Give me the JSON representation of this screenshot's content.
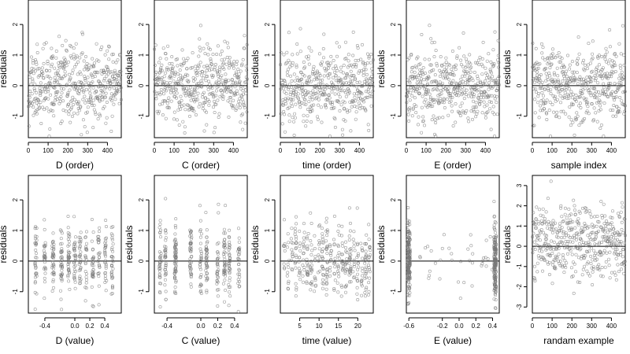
{
  "chart_data": [
    {
      "type": "scatter",
      "xlabel": "D (order)",
      "ylabel": "residuals",
      "xlim": [
        0,
        470
      ],
      "ylim": [
        -1.7,
        2.8
      ],
      "x_ticks": [
        0,
        100,
        200,
        300,
        400
      ],
      "y_ticks": [
        -1,
        0,
        1,
        2
      ],
      "reference_line": 0,
      "pattern": "index",
      "y_center": 0.0,
      "y_spread": 0.6,
      "n": 460,
      "seed": 11
    },
    {
      "type": "scatter",
      "xlabel": "C (order)",
      "ylabel": "residuals",
      "xlim": [
        0,
        470
      ],
      "ylim": [
        -1.7,
        2.8
      ],
      "x_ticks": [
        0,
        100,
        200,
        300,
        400
      ],
      "y_ticks": [
        -1,
        0,
        1,
        2
      ],
      "reference_line": 0,
      "pattern": "index",
      "y_center": 0.0,
      "y_spread": 0.6,
      "n": 460,
      "seed": 23
    },
    {
      "type": "scatter",
      "xlabel": "time (order)",
      "ylabel": "residuals",
      "xlim": [
        0,
        470
      ],
      "ylim": [
        -1.7,
        2.8
      ],
      "x_ticks": [
        0,
        100,
        200,
        300,
        400
      ],
      "y_ticks": [
        -1,
        0,
        1,
        2
      ],
      "reference_line": 0,
      "pattern": "index",
      "y_center": 0.0,
      "y_spread": 0.6,
      "n": 460,
      "seed": 37
    },
    {
      "type": "scatter",
      "xlabel": "E (order)",
      "ylabel": "residuals",
      "xlim": [
        0,
        470
      ],
      "ylim": [
        -1.7,
        2.8
      ],
      "x_ticks": [
        0,
        100,
        200,
        300,
        400
      ],
      "y_ticks": [
        -1,
        0,
        1,
        2
      ],
      "reference_line": 0,
      "pattern": "index",
      "y_center": 0.0,
      "y_spread": 0.6,
      "n": 460,
      "seed": 41
    },
    {
      "type": "scatter",
      "xlabel": "sample index",
      "ylabel": "residuals",
      "xlim": [
        0,
        470
      ],
      "ylim": [
        -1.7,
        2.8
      ],
      "x_ticks": [
        0,
        100,
        200,
        300,
        400
      ],
      "y_ticks": [
        -1,
        0,
        1,
        2
      ],
      "reference_line": 0,
      "pattern": "index",
      "y_center": 0.0,
      "y_spread": 0.6,
      "n": 460,
      "seed": 53
    },
    {
      "type": "scatter",
      "xlabel": "D (value)",
      "ylabel": "residuals",
      "xlim": [
        -0.62,
        0.62
      ],
      "ylim": [
        -1.7,
        2.8
      ],
      "x_ticks": [
        -0.4,
        0.0,
        0.2,
        0.4
      ],
      "x_tick_labels": [
        "-0.4",
        "0.0",
        "0.2",
        "0.4"
      ],
      "y_ticks": [
        -1,
        0,
        1,
        2
      ],
      "reference_line": 0,
      "pattern": "value",
      "x_levels": [
        -0.52,
        -0.4,
        -0.29,
        -0.18,
        -0.08,
        0.0,
        0.07,
        0.15,
        0.24,
        0.32,
        0.41,
        0.5
      ],
      "y_center": 0.0,
      "y_spread": 0.6,
      "n": 380,
      "seed": 61
    },
    {
      "type": "scatter",
      "xlabel": "C (value)",
      "ylabel": "residuals",
      "xlim": [
        -0.55,
        0.55
      ],
      "ylim": [
        -1.7,
        2.8
      ],
      "x_ticks": [
        -0.4,
        0.0,
        0.2,
        0.4
      ],
      "x_tick_labels": [
        "-0.4",
        "0.0",
        "0.2",
        "0.4"
      ],
      "y_ticks": [
        -1,
        0,
        1,
        2
      ],
      "reference_line": 0,
      "pattern": "value",
      "x_levels": [
        -0.48,
        -0.42,
        -0.3,
        -0.12,
        0.0,
        0.07,
        0.2,
        0.28,
        0.34,
        0.45
      ],
      "y_center": 0.0,
      "y_spread": 0.6,
      "n": 380,
      "seed": 71
    },
    {
      "type": "scatter",
      "xlabel": "time (value)",
      "ylabel": "residuals",
      "xlim": [
        0,
        24
      ],
      "ylim": [
        -1.7,
        2.8
      ],
      "x_ticks": [
        5,
        10,
        15,
        20
      ],
      "y_ticks": [
        -1,
        0,
        1,
        2
      ],
      "reference_line": 0,
      "pattern": "value",
      "x_levels": [
        1,
        2,
        3,
        4,
        5,
        6,
        7,
        8,
        9,
        10,
        11,
        12,
        13,
        14,
        15,
        16,
        17,
        18,
        19,
        20,
        21,
        22,
        23
      ],
      "y_center": 0.0,
      "y_spread": 0.6,
      "n": 380,
      "seed": 83
    },
    {
      "type": "scatter",
      "xlabel": "E (value)",
      "ylabel": "residuals",
      "xlim": [
        -0.63,
        0.48
      ],
      "ylim": [
        -1.7,
        2.8
      ],
      "x_ticks": [
        -0.6,
        -0.2,
        0.0,
        0.2,
        0.4
      ],
      "x_tick_labels": [
        "-0.6",
        "-0.2",
        "0.0",
        "0.2",
        "0.4"
      ],
      "y_ticks": [
        -1,
        0,
        1,
        2
      ],
      "reference_line": 0,
      "pattern": "cluster",
      "x_levels": [
        -0.6,
        0.43
      ],
      "y_center": 0.0,
      "y_spread": 0.6,
      "n": 380,
      "seed": 97
    },
    {
      "type": "scatter",
      "xlabel": "randam example",
      "ylabel": "residuals",
      "xlim": [
        0,
        470
      ],
      "ylim": [
        -3.3,
        3.5
      ],
      "x_ticks": [
        0,
        100,
        200,
        300,
        400
      ],
      "y_ticks": [
        -3,
        -2,
        -1,
        0,
        1,
        2,
        3
      ],
      "reference_line": 0,
      "pattern": "index",
      "y_center": 0.3,
      "y_spread": 0.9,
      "n": 460,
      "seed": 101
    }
  ]
}
